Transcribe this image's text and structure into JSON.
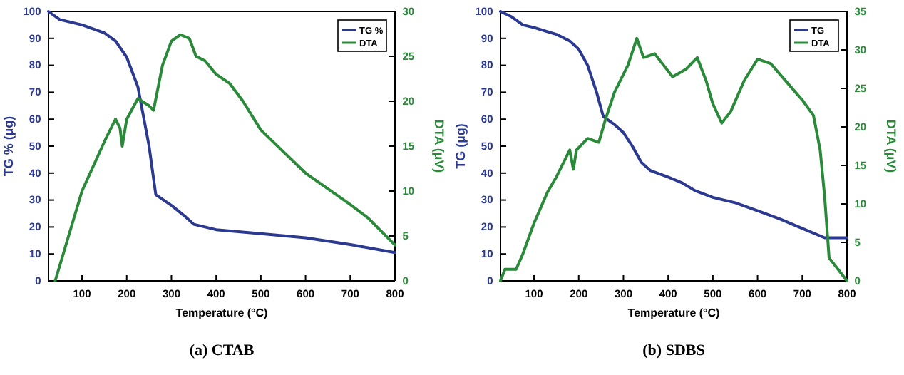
{
  "chart_data": [
    {
      "type": "line",
      "title": "(a) CTAB",
      "xlabel": "Temperature (°C)",
      "ylabel": "TG % (µg)",
      "y2label": "DTA (µV)",
      "xlim": [
        25,
        800
      ],
      "xticks": [
        100,
        200,
        300,
        400,
        500,
        600,
        700,
        800
      ],
      "ylim": [
        0,
        100
      ],
      "yticks": [
        0,
        10,
        20,
        30,
        40,
        50,
        60,
        70,
        80,
        90,
        100
      ],
      "y2lim": [
        0,
        30
      ],
      "y2ticks": [
        0,
        5,
        10,
        15,
        20,
        25,
        30
      ],
      "legend": "top right",
      "series": [
        {
          "name": "TG %",
          "color": "#2b3990",
          "x": [
            25,
            50,
            100,
            150,
            175,
            200,
            225,
            250,
            265,
            300,
            330,
            350,
            400,
            500,
            600,
            700,
            800
          ],
          "values": [
            100,
            97,
            95,
            92,
            89,
            83,
            72,
            50,
            32,
            28,
            24,
            21,
            19,
            17.5,
            16,
            13.5,
            10.5
          ]
        },
        {
          "name": "DTA",
          "color": "#2a8a3a",
          "axis": "y2",
          "x": [
            40,
            100,
            150,
            175,
            185,
            190,
            200,
            225,
            250,
            260,
            280,
            300,
            320,
            340,
            355,
            375,
            400,
            430,
            460,
            500,
            600,
            700,
            740,
            800
          ],
          "values": [
            0,
            10,
            15.5,
            18,
            17,
            15,
            18,
            20.3,
            19.5,
            19,
            24,
            26.7,
            27.4,
            27,
            25,
            24.5,
            23,
            22,
            20,
            16.8,
            12,
            8.5,
            7,
            4
          ]
        }
      ]
    },
    {
      "type": "line",
      "title": "(b) SDBS",
      "xlabel": "Temperature (°C)",
      "ylabel": "TG (µg)",
      "y2label": "DTA (µV)",
      "xlim": [
        25,
        800
      ],
      "xticks": [
        100,
        200,
        300,
        400,
        500,
        600,
        700,
        800
      ],
      "ylim": [
        0,
        100
      ],
      "yticks": [
        0,
        10,
        20,
        30,
        40,
        50,
        60,
        70,
        80,
        90,
        100
      ],
      "y2lim": [
        0,
        35
      ],
      "y2ticks": [
        0,
        5,
        10,
        15,
        20,
        25,
        30,
        35
      ],
      "legend": "top right",
      "series": [
        {
          "name": "TG",
          "color": "#2b3990",
          "x": [
            25,
            50,
            75,
            100,
            150,
            180,
            200,
            220,
            240,
            255,
            280,
            300,
            320,
            340,
            360,
            400,
            430,
            460,
            500,
            550,
            600,
            650,
            700,
            750,
            800
          ],
          "values": [
            100,
            98,
            95,
            94,
            91.5,
            89,
            86,
            80,
            70,
            61,
            58,
            55,
            50,
            44,
            41,
            38.5,
            36.5,
            33.5,
            31,
            29,
            26,
            23,
            19.5,
            16,
            16
          ]
        },
        {
          "name": "DTA",
          "color": "#2a8a3a",
          "axis": "y2",
          "x": [
            25,
            35,
            60,
            75,
            100,
            130,
            150,
            180,
            188,
            195,
            220,
            245,
            260,
            280,
            310,
            330,
            345,
            370,
            390,
            410,
            440,
            465,
            485,
            500,
            520,
            540,
            570,
            600,
            630,
            670,
            700,
            725,
            740,
            750,
            760,
            780,
            800
          ],
          "values": [
            0,
            1.5,
            1.5,
            3.5,
            7.5,
            11.5,
            13.5,
            17,
            14.5,
            17,
            18.5,
            18,
            21,
            24.5,
            28,
            31.5,
            29,
            29.5,
            28,
            26.5,
            27.5,
            29,
            26,
            23,
            20.5,
            22,
            26,
            28.8,
            28.2,
            25.5,
            23.5,
            21.5,
            17,
            11,
            3,
            1.5,
            0
          ]
        }
      ]
    }
  ]
}
